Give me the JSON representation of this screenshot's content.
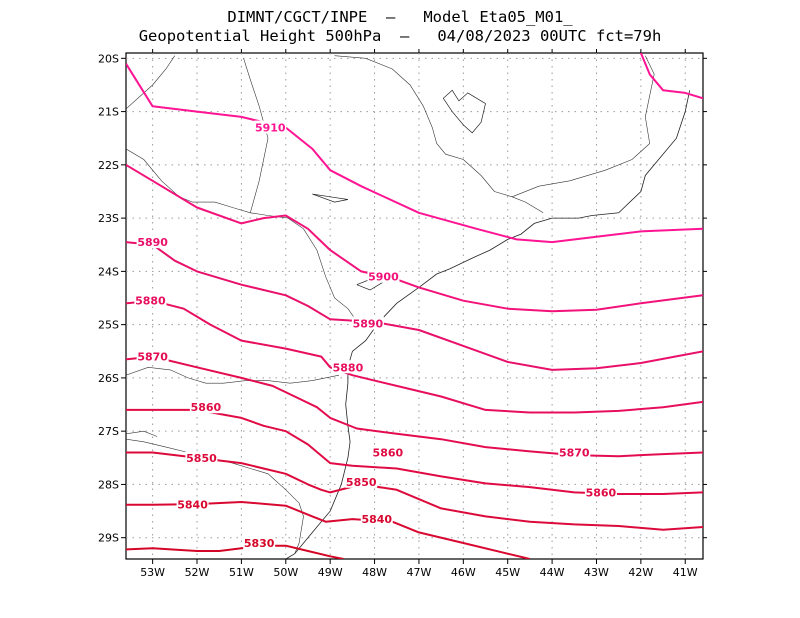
{
  "title_line1": "DIMNT/CGCT/INPE  –   Model Eta05_M01_",
  "title_line2": "Geopotential Height 500hPa  –   04/08/2023 00UTC fct=79h",
  "map": {
    "lon_range": [
      -53.6,
      -40.6
    ],
    "lat_range": [
      -29.4,
      -19.9
    ],
    "lon_ticks": [
      -53,
      -52,
      -51,
      -50,
      -49,
      -48,
      -47,
      -46,
      -45,
      -44,
      -43,
      -42,
      -41
    ],
    "lat_ticks": [
      -20,
      -21,
      -22,
      -23,
      -24,
      -25,
      -26,
      -27,
      -28,
      -29
    ],
    "lon_tick_labels": [
      "53W",
      "52W",
      "51W",
      "50W",
      "49W",
      "48W",
      "47W",
      "46W",
      "45W",
      "44W",
      "43W",
      "42W",
      "41W"
    ],
    "lat_tick_labels": [
      "20S",
      "21S",
      "22S",
      "23S",
      "24S",
      "25S",
      "26S",
      "27S",
      "28S",
      "29S"
    ],
    "grid": true
  },
  "contour_colors": {
    "5910": "#ff1493",
    "5900": "#f2127a",
    "5890": "#e8106a",
    "5880": "#e80e5e",
    "5870": "#e40c50",
    "5860": "#e00b44",
    "5850": "#dc0a3a",
    "5840": "#d80830",
    "5830": "#d40626"
  },
  "contours": [
    {
      "level": "5910",
      "label": "5910",
      "label_at": [
        -50.35,
        -21.3
      ],
      "points": [
        [
          -53.6,
          -20.1
        ],
        [
          -53.0,
          -20.9
        ],
        [
          -52.0,
          -21.0
        ],
        [
          -51.0,
          -21.1
        ],
        [
          -50.0,
          -21.3
        ],
        [
          -49.4,
          -21.7
        ],
        [
          -49.0,
          -22.1
        ],
        [
          -48.3,
          -22.4
        ],
        [
          -47.0,
          -22.9
        ],
        [
          -45.7,
          -23.2
        ],
        [
          -44.8,
          -23.4
        ],
        [
          -44.0,
          -23.45
        ],
        [
          -43.0,
          -23.35
        ],
        [
          -42.0,
          -23.25
        ],
        [
          -40.6,
          -23.2
        ]
      ]
    },
    {
      "level": "5910",
      "label": "",
      "label_at": null,
      "points": [
        [
          -42.0,
          -19.9
        ],
        [
          -41.8,
          -20.3
        ],
        [
          -41.5,
          -20.6
        ],
        [
          -41.0,
          -20.65
        ],
        [
          -40.6,
          -20.75
        ]
      ]
    },
    {
      "level": "5900",
      "label": "5900",
      "label_at": [
        -47.8,
        -24.1
      ],
      "points": [
        [
          -53.6,
          -22.0
        ],
        [
          -53.0,
          -22.3
        ],
        [
          -52.0,
          -22.8
        ],
        [
          -51.0,
          -23.1
        ],
        [
          -50.5,
          -23.0
        ],
        [
          -50.0,
          -22.95
        ],
        [
          -49.5,
          -23.2
        ],
        [
          -49.0,
          -23.6
        ],
        [
          -48.3,
          -24.0
        ],
        [
          -47.5,
          -24.15
        ],
        [
          -47.0,
          -24.3
        ],
        [
          -46.0,
          -24.55
        ],
        [
          -45.0,
          -24.7
        ],
        [
          -44.0,
          -24.75
        ],
        [
          -43.0,
          -24.72
        ],
        [
          -42.0,
          -24.6
        ],
        [
          -40.6,
          -24.45
        ]
      ]
    },
    {
      "level": "5890",
      "label": "5890",
      "label_at": [
        -53.0,
        -23.45
      ],
      "points": [
        [
          -53.6,
          -23.45
        ],
        [
          -53.0,
          -23.5
        ],
        [
          -52.5,
          -23.8
        ],
        [
          -52.0,
          -24.0
        ],
        [
          -51.0,
          -24.25
        ],
        [
          -50.0,
          -24.45
        ],
        [
          -49.5,
          -24.65
        ],
        [
          -49.0,
          -24.9
        ],
        [
          -48.0,
          -24.95
        ],
        [
          -47.0,
          -25.1
        ],
        [
          -46.0,
          -25.4
        ],
        [
          -45.0,
          -25.7
        ],
        [
          -44.0,
          -25.85
        ],
        [
          -43.0,
          -25.82
        ],
        [
          -42.0,
          -25.72
        ],
        [
          -40.6,
          -25.5
        ]
      ]
    },
    {
      "level": "5890",
      "label": "5890",
      "label_at": [
        -48.15,
        -24.98
      ],
      "points": []
    },
    {
      "level": "5880",
      "label": "5880",
      "label_at": [
        -53.05,
        -24.55
      ],
      "points": [
        [
          -53.6,
          -24.6
        ],
        [
          -53.0,
          -24.55
        ],
        [
          -52.3,
          -24.7
        ],
        [
          -51.7,
          -25.0
        ],
        [
          -51.0,
          -25.3
        ],
        [
          -50.0,
          -25.45
        ],
        [
          -49.2,
          -25.6
        ],
        [
          -49.0,
          -25.8
        ],
        [
          -48.5,
          -25.95
        ],
        [
          -47.5,
          -26.15
        ],
        [
          -46.5,
          -26.35
        ],
        [
          -45.5,
          -26.6
        ],
        [
          -44.5,
          -26.65
        ],
        [
          -43.5,
          -26.65
        ],
        [
          -42.5,
          -26.62
        ],
        [
          -41.5,
          -26.55
        ],
        [
          -40.6,
          -26.45
        ]
      ]
    },
    {
      "level": "5880",
      "label": "5880",
      "label_at": [
        -48.6,
        -25.8
      ],
      "points": []
    },
    {
      "level": "5870",
      "label": "5870",
      "label_at": [
        -53.0,
        -25.6
      ],
      "points": [
        [
          -53.6,
          -25.65
        ],
        [
          -53.0,
          -25.6
        ],
        [
          -52.0,
          -25.8
        ],
        [
          -51.0,
          -26.0
        ],
        [
          -50.3,
          -26.15
        ],
        [
          -49.8,
          -26.35
        ],
        [
          -49.3,
          -26.55
        ],
        [
          -49.0,
          -26.75
        ],
        [
          -48.4,
          -26.95
        ],
        [
          -47.5,
          -27.05
        ],
        [
          -46.5,
          -27.15
        ],
        [
          -45.5,
          -27.3
        ],
        [
          -44.5,
          -27.38
        ],
        [
          -43.5,
          -27.45
        ],
        [
          -42.5,
          -27.47
        ],
        [
          -41.5,
          -27.43
        ],
        [
          -40.6,
          -27.4
        ]
      ]
    },
    {
      "level": "5870",
      "label": "5870",
      "label_at": [
        -43.5,
        -27.4
      ],
      "points": []
    },
    {
      "level": "5860",
      "label": "5860",
      "label_at": [
        -51.8,
        -26.55
      ],
      "points": [
        [
          -53.6,
          -26.6
        ],
        [
          -53.0,
          -26.6
        ],
        [
          -52.0,
          -26.6
        ],
        [
          -51.0,
          -26.75
        ],
        [
          -50.5,
          -26.9
        ],
        [
          -50.0,
          -27.0
        ],
        [
          -49.5,
          -27.25
        ],
        [
          -49.0,
          -27.6
        ],
        [
          -48.5,
          -27.65
        ],
        [
          -47.5,
          -27.7
        ],
        [
          -46.5,
          -27.85
        ],
        [
          -45.5,
          -27.98
        ],
        [
          -44.5,
          -28.05
        ],
        [
          -43.5,
          -28.15
        ],
        [
          -42.5,
          -28.18
        ],
        [
          -41.5,
          -28.18
        ],
        [
          -40.6,
          -28.15
        ]
      ]
    },
    {
      "level": "5860",
      "label": "5860",
      "label_at": [
        -47.7,
        -27.4
      ],
      "points": []
    },
    {
      "level": "5860",
      "label": "5860",
      "label_at": [
        -42.9,
        -28.15
      ],
      "points": []
    },
    {
      "level": "5850",
      "label": "5850",
      "label_at": [
        -51.9,
        -27.5
      ],
      "points": [
        [
          -53.6,
          -27.4
        ],
        [
          -53.0,
          -27.4
        ],
        [
          -52.0,
          -27.5
        ],
        [
          -51.5,
          -27.55
        ],
        [
          -51.0,
          -27.6
        ],
        [
          -50.5,
          -27.7
        ],
        [
          -50.0,
          -27.8
        ],
        [
          -49.5,
          -28.0
        ],
        [
          -49.2,
          -28.1
        ],
        [
          -49.0,
          -28.15
        ],
        [
          -48.3,
          -28.0
        ],
        [
          -47.5,
          -28.1
        ],
        [
          -46.5,
          -28.45
        ],
        [
          -45.5,
          -28.6
        ],
        [
          -44.5,
          -28.7
        ],
        [
          -43.5,
          -28.75
        ],
        [
          -42.5,
          -28.78
        ],
        [
          -41.5,
          -28.85
        ],
        [
          -40.6,
          -28.8
        ]
      ]
    },
    {
      "level": "5850",
      "label": "5850",
      "label_at": [
        -48.3,
        -27.95
      ],
      "points": []
    },
    {
      "level": "5840",
      "label": "5840",
      "label_at": [
        -52.1,
        -28.38
      ],
      "points": [
        [
          -53.6,
          -28.38
        ],
        [
          -53.0,
          -28.38
        ],
        [
          -52.0,
          -28.37
        ],
        [
          -51.0,
          -28.33
        ],
        [
          -50.0,
          -28.4
        ],
        [
          -49.4,
          -28.6
        ],
        [
          -49.1,
          -28.7
        ],
        [
          -48.5,
          -28.65
        ],
        [
          -47.6,
          -28.7
        ],
        [
          -47.0,
          -28.9
        ],
        [
          -46.0,
          -29.1
        ],
        [
          -45.0,
          -29.3
        ],
        [
          -44.5,
          -29.4
        ]
      ]
    },
    {
      "level": "5840",
      "label": "5840",
      "label_at": [
        -47.95,
        -28.65
      ],
      "points": []
    },
    {
      "level": "5830",
      "label": "5830",
      "label_at": [
        -50.6,
        -29.1
      ],
      "points": [
        [
          -53.6,
          -29.22
        ],
        [
          -53.0,
          -29.2
        ],
        [
          -52.0,
          -29.25
        ],
        [
          -51.5,
          -29.25
        ],
        [
          -51.0,
          -29.2
        ],
        [
          -50.5,
          -29.15
        ],
        [
          -50.0,
          -29.15
        ],
        [
          -49.5,
          -29.25
        ],
        [
          -49.0,
          -29.35
        ],
        [
          -48.7,
          -29.4
        ]
      ]
    }
  ],
  "coastline": [
    [
      [
        -40.9,
        -20.6
      ],
      [
        -41.0,
        -21.0
      ],
      [
        -41.2,
        -21.5
      ],
      [
        -41.6,
        -21.9
      ],
      [
        -41.9,
        -22.2
      ],
      [
        -42.0,
        -22.5
      ],
      [
        -42.5,
        -22.9
      ],
      [
        -43.1,
        -22.95
      ],
      [
        -43.4,
        -23.0
      ],
      [
        -44.0,
        -23.0
      ],
      [
        -44.4,
        -23.1
      ],
      [
        -44.7,
        -23.3
      ],
      [
        -45.0,
        -23.4
      ],
      [
        -45.4,
        -23.6
      ],
      [
        -45.8,
        -23.75
      ],
      [
        -46.3,
        -23.95
      ],
      [
        -46.6,
        -24.05
      ],
      [
        -47.0,
        -24.3
      ],
      [
        -47.5,
        -24.6
      ],
      [
        -47.9,
        -24.95
      ],
      [
        -48.2,
        -25.3
      ],
      [
        -48.5,
        -25.5
      ],
      [
        -48.6,
        -25.8
      ],
      [
        -48.6,
        -26.1
      ],
      [
        -48.65,
        -26.5
      ],
      [
        -48.6,
        -26.9
      ],
      [
        -48.55,
        -27.2
      ],
      [
        -48.6,
        -27.5
      ],
      [
        -48.75,
        -28.0
      ],
      [
        -49.0,
        -28.5
      ],
      [
        -49.4,
        -28.9
      ],
      [
        -49.8,
        -29.3
      ],
      [
        -50.0,
        -29.4
      ]
    ]
  ],
  "borders": [
    [
      [
        -53.6,
        -21.7
      ],
      [
        -53.2,
        -21.9
      ],
      [
        -52.8,
        -22.3
      ],
      [
        -52.4,
        -22.6
      ],
      [
        -52.1,
        -22.7
      ],
      [
        -51.6,
        -22.7
      ],
      [
        -51.2,
        -22.8
      ],
      [
        -50.8,
        -22.9
      ],
      [
        -50.4,
        -22.95
      ],
      [
        -49.95,
        -23.0
      ],
      [
        -49.6,
        -23.2
      ],
      [
        -49.3,
        -23.6
      ],
      [
        -49.1,
        -24.1
      ],
      [
        -48.9,
        -24.5
      ],
      [
        -48.6,
        -24.7
      ],
      [
        -48.3,
        -25.05
      ]
    ],
    [
      [
        -53.6,
        -20.95
      ],
      [
        -53.0,
        -20.5
      ],
      [
        -52.7,
        -20.2
      ],
      [
        -52.5,
        -19.95
      ]
    ],
    [
      [
        -50.8,
        -22.9
      ],
      [
        -50.6,
        -22.3
      ],
      [
        -50.4,
        -21.5
      ],
      [
        -50.6,
        -20.9
      ],
      [
        -50.8,
        -20.4
      ],
      [
        -50.95,
        -20.0
      ]
    ],
    [
      [
        -48.9,
        -19.95
      ],
      [
        -48.2,
        -20.0
      ],
      [
        -47.6,
        -20.2
      ],
      [
        -47.2,
        -20.5
      ],
      [
        -46.9,
        -20.9
      ],
      [
        -46.7,
        -21.3
      ],
      [
        -46.6,
        -21.6
      ],
      [
        -46.4,
        -21.8
      ],
      [
        -46.0,
        -21.9
      ],
      [
        -45.6,
        -22.2
      ],
      [
        -45.3,
        -22.5
      ],
      [
        -44.9,
        -22.6
      ],
      [
        -44.6,
        -22.7
      ],
      [
        -44.2,
        -22.9
      ]
    ],
    [
      [
        -44.9,
        -22.6
      ],
      [
        -44.3,
        -22.4
      ],
      [
        -43.6,
        -22.3
      ],
      [
        -42.8,
        -22.1
      ],
      [
        -42.2,
        -21.9
      ],
      [
        -41.8,
        -21.6
      ],
      [
        -41.9,
        -21.1
      ],
      [
        -41.8,
        -20.7
      ],
      [
        -41.7,
        -20.3
      ],
      [
        -41.9,
        -19.95
      ]
    ],
    [
      [
        -53.6,
        -25.95
      ],
      [
        -53.1,
        -25.8
      ],
      [
        -52.6,
        -25.85
      ],
      [
        -52.2,
        -26.0
      ],
      [
        -51.8,
        -26.1
      ],
      [
        -51.4,
        -26.1
      ],
      [
        -50.9,
        -26.05
      ],
      [
        -50.4,
        -26.05
      ],
      [
        -49.9,
        -26.1
      ],
      [
        -49.4,
        -26.05
      ],
      [
        -48.8,
        -25.95
      ]
    ],
    [
      [
        -53.6,
        -27.15
      ],
      [
        -53.2,
        -27.2
      ],
      [
        -52.7,
        -27.3
      ],
      [
        -52.2,
        -27.4
      ],
      [
        -51.7,
        -27.5
      ],
      [
        -51.2,
        -27.6
      ],
      [
        -50.8,
        -27.7
      ],
      [
        -50.4,
        -27.8
      ],
      [
        -50.0,
        -28.1
      ],
      [
        -49.7,
        -28.35
      ],
      [
        -49.6,
        -28.6
      ],
      [
        -49.7,
        -29.1
      ],
      [
        -49.8,
        -29.3
      ]
    ],
    [
      [
        -53.6,
        -27.05
      ],
      [
        -53.2,
        -27.0
      ],
      [
        -52.9,
        -27.1
      ]
    ]
  ],
  "lakes": [
    [
      [
        -45.5,
        -20.85
      ],
      [
        -45.9,
        -20.65
      ],
      [
        -46.1,
        -20.8
      ],
      [
        -46.25,
        -20.6
      ],
      [
        -46.45,
        -20.75
      ],
      [
        -46.25,
        -21.0
      ],
      [
        -46.0,
        -21.25
      ],
      [
        -45.8,
        -21.4
      ],
      [
        -45.6,
        -21.2
      ],
      [
        -45.5,
        -20.85
      ]
    ],
    [
      [
        -49.4,
        -22.55
      ],
      [
        -49.0,
        -22.6
      ],
      [
        -48.6,
        -22.65
      ],
      [
        -48.9,
        -22.7
      ],
      [
        -49.4,
        -22.55
      ]
    ],
    [
      [
        -48.4,
        -24.25
      ],
      [
        -48.1,
        -24.15
      ],
      [
        -47.8,
        -24.2
      ],
      [
        -48.1,
        -24.35
      ],
      [
        -48.4,
        -24.25
      ]
    ]
  ]
}
